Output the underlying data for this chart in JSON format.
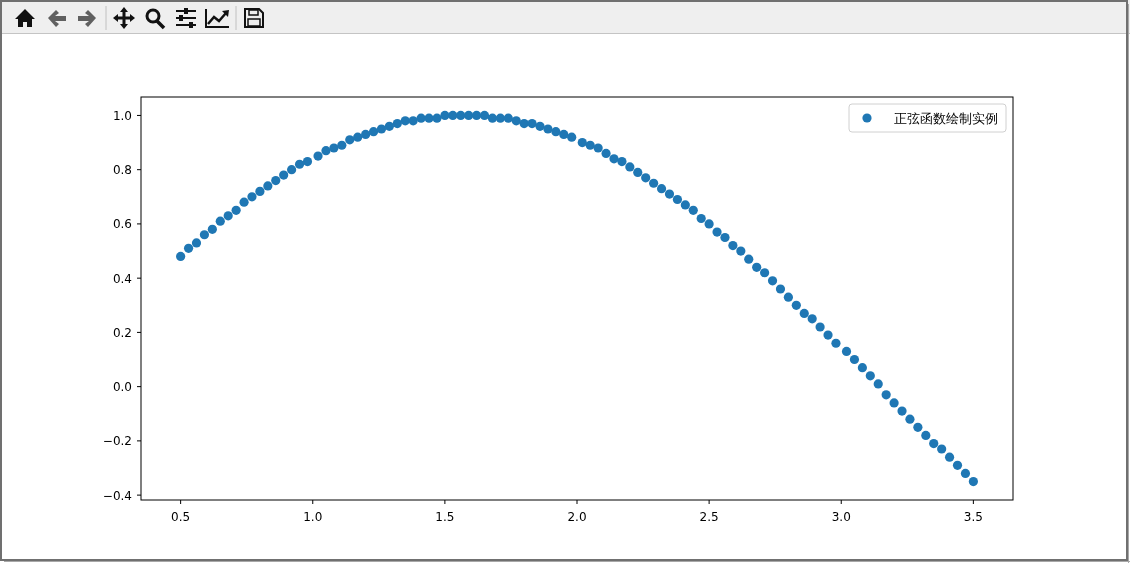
{
  "chart_data": {
    "type": "scatter",
    "x": [
      0.5,
      0.53,
      0.56,
      0.59,
      0.62,
      0.65,
      0.68,
      0.71,
      0.74,
      0.77,
      0.8,
      0.83,
      0.86,
      0.89,
      0.92,
      0.95,
      0.98,
      1.02,
      1.05,
      1.08,
      1.11,
      1.14,
      1.17,
      1.2,
      1.23,
      1.26,
      1.29,
      1.32,
      1.35,
      1.38,
      1.41,
      1.44,
      1.47,
      1.5,
      1.53,
      1.56,
      1.59,
      1.62,
      1.65,
      1.68,
      1.71,
      1.74,
      1.77,
      1.8,
      1.83,
      1.86,
      1.89,
      1.92,
      1.95,
      1.98,
      2.02,
      2.05,
      2.08,
      2.11,
      2.14,
      2.17,
      2.2,
      2.23,
      2.26,
      2.29,
      2.32,
      2.35,
      2.38,
      2.41,
      2.44,
      2.47,
      2.5,
      2.53,
      2.56,
      2.59,
      2.62,
      2.65,
      2.68,
      2.71,
      2.74,
      2.77,
      2.8,
      2.83,
      2.86,
      2.89,
      2.92,
      2.95,
      2.98,
      3.02,
      3.05,
      3.08,
      3.11,
      3.14,
      3.17,
      3.2,
      3.23,
      3.26,
      3.29,
      3.32,
      3.35,
      3.38,
      3.41,
      3.44,
      3.47,
      3.5
    ],
    "series": [
      {
        "name": "正弦函数绘制实例",
        "color": "#1f77b4",
        "values": [
          0.48,
          0.51,
          0.53,
          0.56,
          0.58,
          0.61,
          0.63,
          0.65,
          0.68,
          0.7,
          0.72,
          0.74,
          0.76,
          0.78,
          0.8,
          0.82,
          0.83,
          0.85,
          0.87,
          0.88,
          0.89,
          0.91,
          0.92,
          0.93,
          0.94,
          0.95,
          0.96,
          0.97,
          0.98,
          0.98,
          0.99,
          0.99,
          0.99,
          1.0,
          1.0,
          1.0,
          1.0,
          1.0,
          1.0,
          0.99,
          0.99,
          0.99,
          0.98,
          0.97,
          0.97,
          0.96,
          0.95,
          0.94,
          0.93,
          0.92,
          0.9,
          0.89,
          0.88,
          0.86,
          0.84,
          0.83,
          0.81,
          0.79,
          0.77,
          0.75,
          0.73,
          0.71,
          0.69,
          0.67,
          0.65,
          0.62,
          0.6,
          0.57,
          0.55,
          0.52,
          0.5,
          0.47,
          0.44,
          0.42,
          0.39,
          0.36,
          0.33,
          0.3,
          0.27,
          0.25,
          0.22,
          0.19,
          0.16,
          0.13,
          0.1,
          0.07,
          0.04,
          0.01,
          -0.03,
          -0.06,
          -0.09,
          -0.12,
          -0.15,
          -0.18,
          -0.21,
          -0.23,
          -0.26,
          -0.29,
          -0.32,
          -0.35
        ]
      }
    ],
    "xlim": [
      0.35,
      3.65
    ],
    "ylim": [
      -0.418,
      1.068
    ],
    "xticks": [
      0.5,
      {
        "value": 1,
        "label": "1.0"
      },
      1.5,
      {
        "value": 2,
        "label": "2.0"
      },
      2.5,
      {
        "value": 3,
        "label": "3.0"
      },
      3.5
    ],
    "yticks": [
      {
        "value": -0.4,
        "label": "−0.4"
      },
      {
        "value": -0.2,
        "label": "−0.2"
      },
      {
        "value": 0,
        "label": "0.0"
      },
      0.2,
      0.4,
      0.6,
      0.8,
      {
        "value": 1,
        "label": "1.0"
      }
    ],
    "legend": "top right",
    "marker": "circle"
  }
}
